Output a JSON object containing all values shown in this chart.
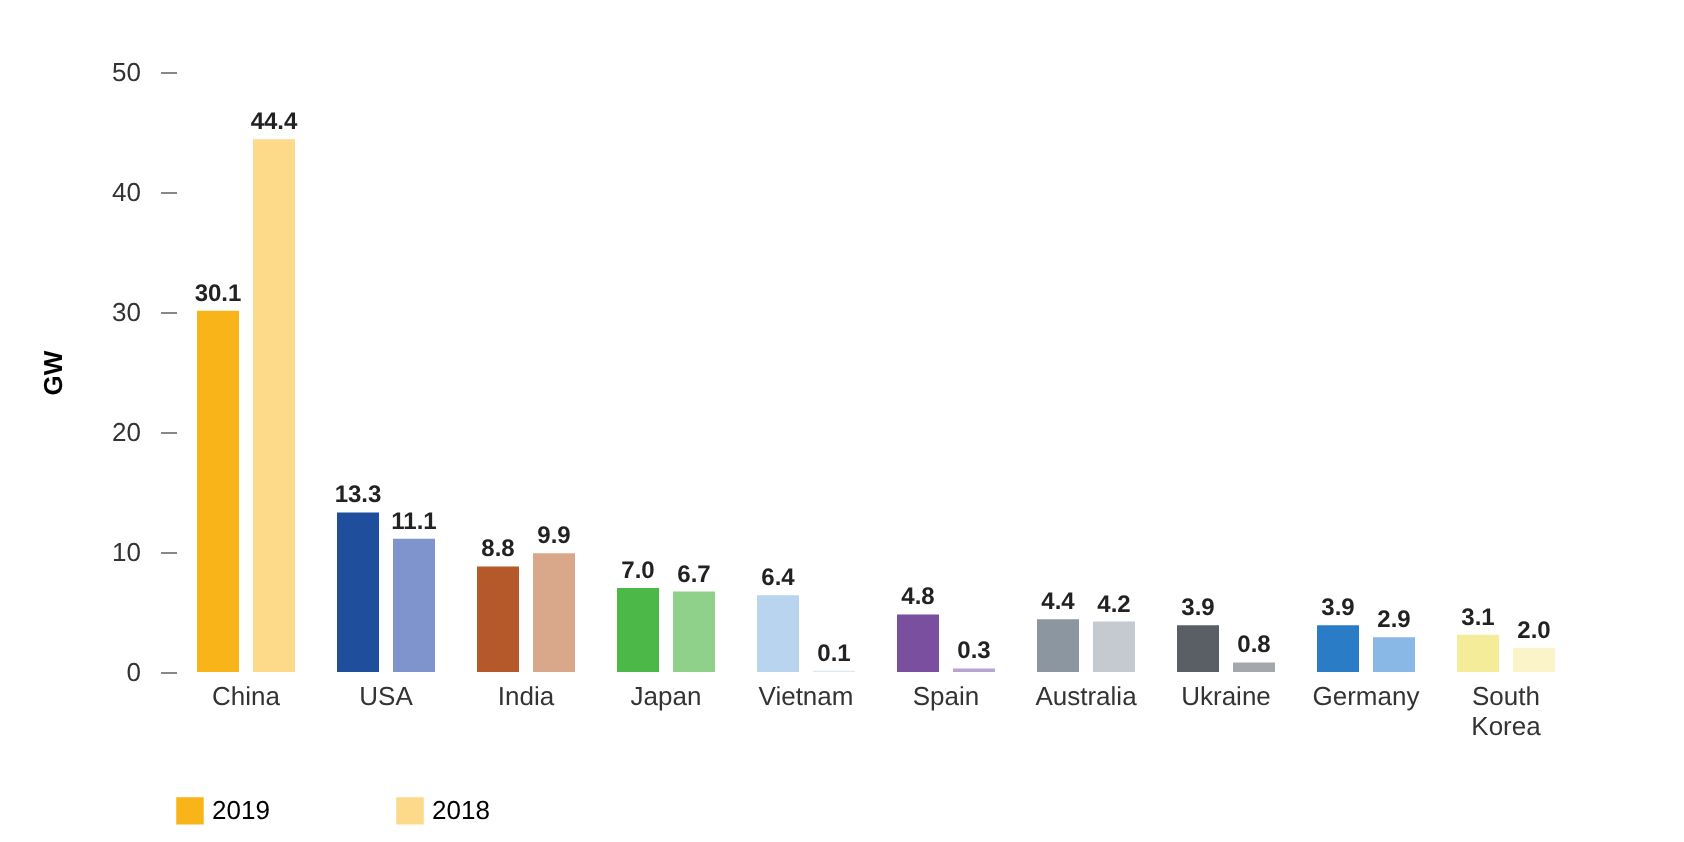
{
  "chart_data": {
    "type": "bar",
    "ylabel": "GW",
    "categories": [
      "China",
      "USA",
      "India",
      "Japan",
      "Vietnam",
      "Spain",
      "Australia",
      "Ukraine",
      "Germany",
      "South Korea"
    ],
    "series": [
      {
        "name": "2019",
        "color": "#f9b41a",
        "colors": [
          "#f9b41a",
          "#1f4e9c",
          "#b5592a",
          "#4cb848",
          "#b8d4ee",
          "#7a4fa0",
          "#8c96a0",
          "#5a5f66",
          "#2a7cc7",
          "#f5ec9a"
        ],
        "values": [
          30.1,
          13.3,
          8.8,
          7.0,
          6.4,
          4.8,
          4.4,
          3.9,
          3.9,
          3.1
        ],
        "value_labels": [
          "30.1",
          "13.3",
          "8.8",
          "7.0",
          "6.4",
          "4.8",
          "4.4",
          "3.9",
          "3.9",
          "3.1"
        ]
      },
      {
        "name": "2018",
        "color": "#fdd98a",
        "colors": [
          "#fdd98a",
          "#7f93cc",
          "#d9a88a",
          "#8fd08a",
          "#dbe8f6",
          "#b9a3d2",
          "#c4cad0",
          "#a4a8ad",
          "#8ab8e6",
          "#faf4c8"
        ],
        "values": [
          44.4,
          11.1,
          9.9,
          6.7,
          0.1,
          0.3,
          4.2,
          0.8,
          2.9,
          2.0
        ],
        "value_labels": [
          "44.4",
          "11.1",
          "9.9",
          "6.7",
          "0.1",
          "0.3",
          "4.2",
          "0.8",
          "2.9",
          "2.0"
        ]
      }
    ],
    "ylim": [
      0,
      50
    ],
    "yticks": [
      0,
      10,
      20,
      30,
      40,
      50
    ],
    "grid": false,
    "legend": "bottom"
  }
}
